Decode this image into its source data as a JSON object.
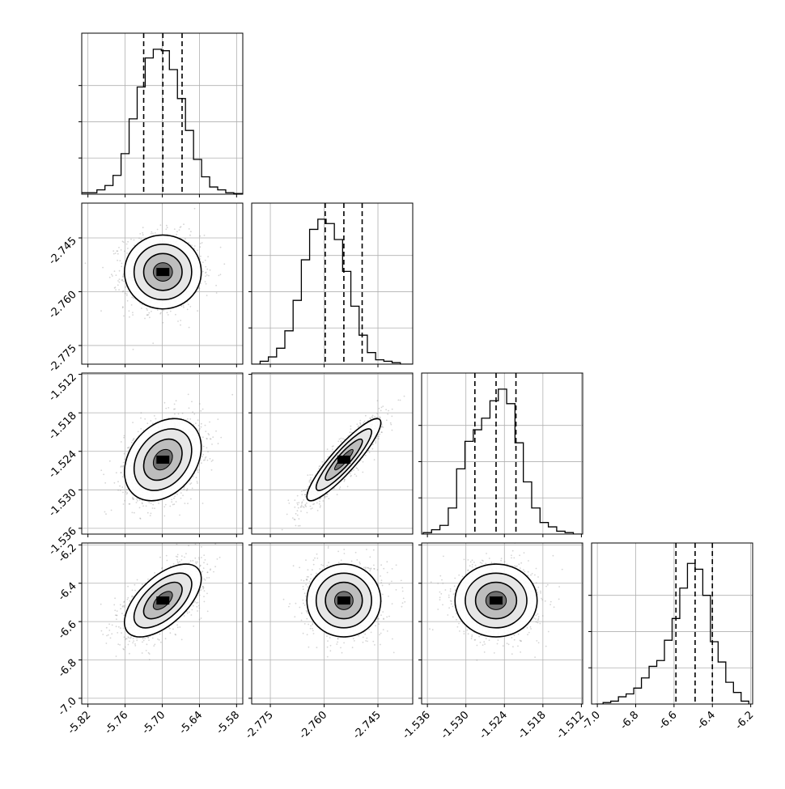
{
  "chart_data": {
    "type": "corner",
    "grid": true,
    "legend": "none",
    "parameters": [
      {
        "ticks": [
          "-5.82",
          "-5.76",
          "-5.70",
          "-5.64",
          "-5.58"
        ],
        "tick_values": [
          -5.82,
          -5.76,
          -5.7,
          -5.64,
          -5.58
        ],
        "range": [
          -5.83,
          -5.57
        ],
        "quantiles": [
          -5.73,
          -5.699,
          -5.668
        ],
        "hist_x": [
          -5.825,
          -5.812,
          -5.799,
          -5.786,
          -5.773,
          -5.76,
          -5.747,
          -5.734,
          -5.721,
          -5.708,
          -5.695,
          -5.682,
          -5.669,
          -5.656,
          -5.643,
          -5.63,
          -5.617,
          -5.604,
          -5.591,
          -5.578
        ],
        "hist_y": [
          0.01,
          0.01,
          0.03,
          0.06,
          0.13,
          0.28,
          0.52,
          0.74,
          0.94,
          1.0,
          0.99,
          0.86,
          0.66,
          0.44,
          0.24,
          0.12,
          0.05,
          0.03,
          0.01,
          0.005
        ]
      },
      {
        "ticks": [
          "-2.775",
          "-2.760",
          "-2.745"
        ],
        "tick_values": [
          -2.775,
          -2.76,
          -2.745
        ],
        "range": [
          -2.7802,
          -2.7353
        ],
        "quantiles": [
          -2.7597,
          -2.7545,
          -2.7494
        ],
        "hist_x": [
          -2.779,
          -2.7767,
          -2.7744,
          -2.7721,
          -2.7698,
          -2.7675,
          -2.7652,
          -2.7629,
          -2.7606,
          -2.7583,
          -2.756,
          -2.7537,
          -2.7514,
          -2.7491,
          -2.7468,
          -2.7445,
          -2.7422,
          -2.7399,
          -2.7376,
          -2.7353
        ],
        "hist_y": [
          0.0,
          0.02,
          0.05,
          0.11,
          0.23,
          0.44,
          0.72,
          0.93,
          1.0,
          0.97,
          0.86,
          0.64,
          0.4,
          0.2,
          0.08,
          0.03,
          0.02,
          0.01,
          0.0,
          0.0
        ],
        "ylabels": [
          "-2.745",
          "-2.760",
          "-2.775"
        ]
      },
      {
        "ticks": [
          "-1.536",
          "-1.530",
          "-1.524",
          "-1.518",
          "-1.512"
        ],
        "tick_values": [
          -1.536,
          -1.53,
          -1.524,
          -1.518,
          -1.512
        ],
        "range": [
          -1.5369,
          -1.5118
        ],
        "quantiles": [
          -1.5286,
          -1.5253,
          -1.5222
        ],
        "hist_x": [
          -1.536,
          -1.5347,
          -1.5334,
          -1.5321,
          -1.5308,
          -1.5295,
          -1.5282,
          -1.5269,
          -1.5256,
          -1.5243,
          -1.523,
          -1.5217,
          -1.5204,
          -1.5191,
          -1.5178,
          -1.5165,
          -1.5152,
          -1.5139,
          -1.5126
        ],
        "hist_y": [
          0.01,
          0.03,
          0.06,
          0.18,
          0.45,
          0.64,
          0.72,
          0.8,
          0.92,
          1.0,
          0.9,
          0.63,
          0.36,
          0.18,
          0.08,
          0.05,
          0.02,
          0.01,
          0.0
        ],
        "ylabels": [
          "-1.512",
          "-1.518",
          "-1.524",
          "-1.530",
          "-1.536"
        ]
      },
      {
        "ticks": [
          "-7.0",
          "-6.8",
          "-6.6",
          "-6.4",
          "-6.2"
        ],
        "tick_values": [
          -7.0,
          -6.8,
          -6.6,
          -6.4,
          -6.2
        ],
        "range": [
          -7.03,
          -6.19
        ],
        "quantiles": [
          -6.59,
          -6.49,
          -6.4
        ],
        "hist_x": [
          -6.99,
          -6.95,
          -6.91,
          -6.87,
          -6.83,
          -6.79,
          -6.75,
          -6.71,
          -6.67,
          -6.63,
          -6.59,
          -6.55,
          -6.51,
          -6.47,
          -6.43,
          -6.39,
          -6.35,
          -6.31,
          -6.27,
          -6.23
        ],
        "hist_y": [
          0.0,
          0.01,
          0.02,
          0.05,
          0.07,
          0.11,
          0.18,
          0.26,
          0.3,
          0.44,
          0.59,
          0.8,
          0.97,
          0.93,
          0.75,
          0.43,
          0.29,
          0.15,
          0.08,
          0.02
        ],
        "ylabels": [
          "-6.2",
          "-6.4",
          "-6.6",
          "-6.8",
          "-7.0"
        ]
      }
    ],
    "correlations": [
      [
        null,
        null,
        null,
        null
      ],
      [
        0.0,
        null,
        null,
        null
      ],
      [
        0.3,
        0.9,
        null,
        null
      ],
      [
        0.6,
        0.0,
        0.0,
        null
      ]
    ]
  }
}
